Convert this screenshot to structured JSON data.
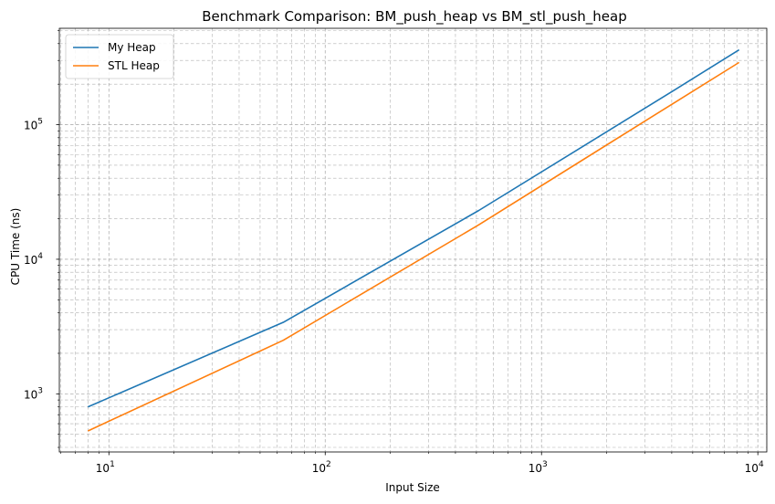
{
  "chart_data": {
    "type": "line",
    "title": "Benchmark Comparison: BM_push_heap vs BM_stl_push_heap",
    "xlabel": "Input Size",
    "ylabel": "CPU Time (ns)",
    "xscale": "log",
    "yscale": "log",
    "xlim": [
      5.9,
      11000
    ],
    "ylim": [
      370,
      520000
    ],
    "grid": true,
    "grid_style": "dashed",
    "legend_position": "top-left",
    "x": [
      8,
      64,
      512,
      4096,
      8192
    ],
    "series": [
      {
        "name": "My Heap",
        "color": "#1f77b4",
        "values": [
          800,
          3400,
          23000,
          180000,
          360000
        ]
      },
      {
        "name": "STL Heap",
        "color": "#ff7f0e",
        "values": [
          530,
          2500,
          18000,
          145000,
          290000
        ]
      }
    ],
    "x_ticks": [
      {
        "value": 10,
        "base": "10",
        "exp": "1"
      },
      {
        "value": 100,
        "base": "10",
        "exp": "2"
      },
      {
        "value": 1000,
        "base": "10",
        "exp": "3"
      },
      {
        "value": 10000,
        "base": "10",
        "exp": "4"
      }
    ],
    "y_ticks": [
      {
        "value": 1000,
        "base": "10",
        "exp": "3"
      },
      {
        "value": 10000,
        "base": "10",
        "exp": "4"
      },
      {
        "value": 100000,
        "base": "10",
        "exp": "5"
      }
    ]
  }
}
